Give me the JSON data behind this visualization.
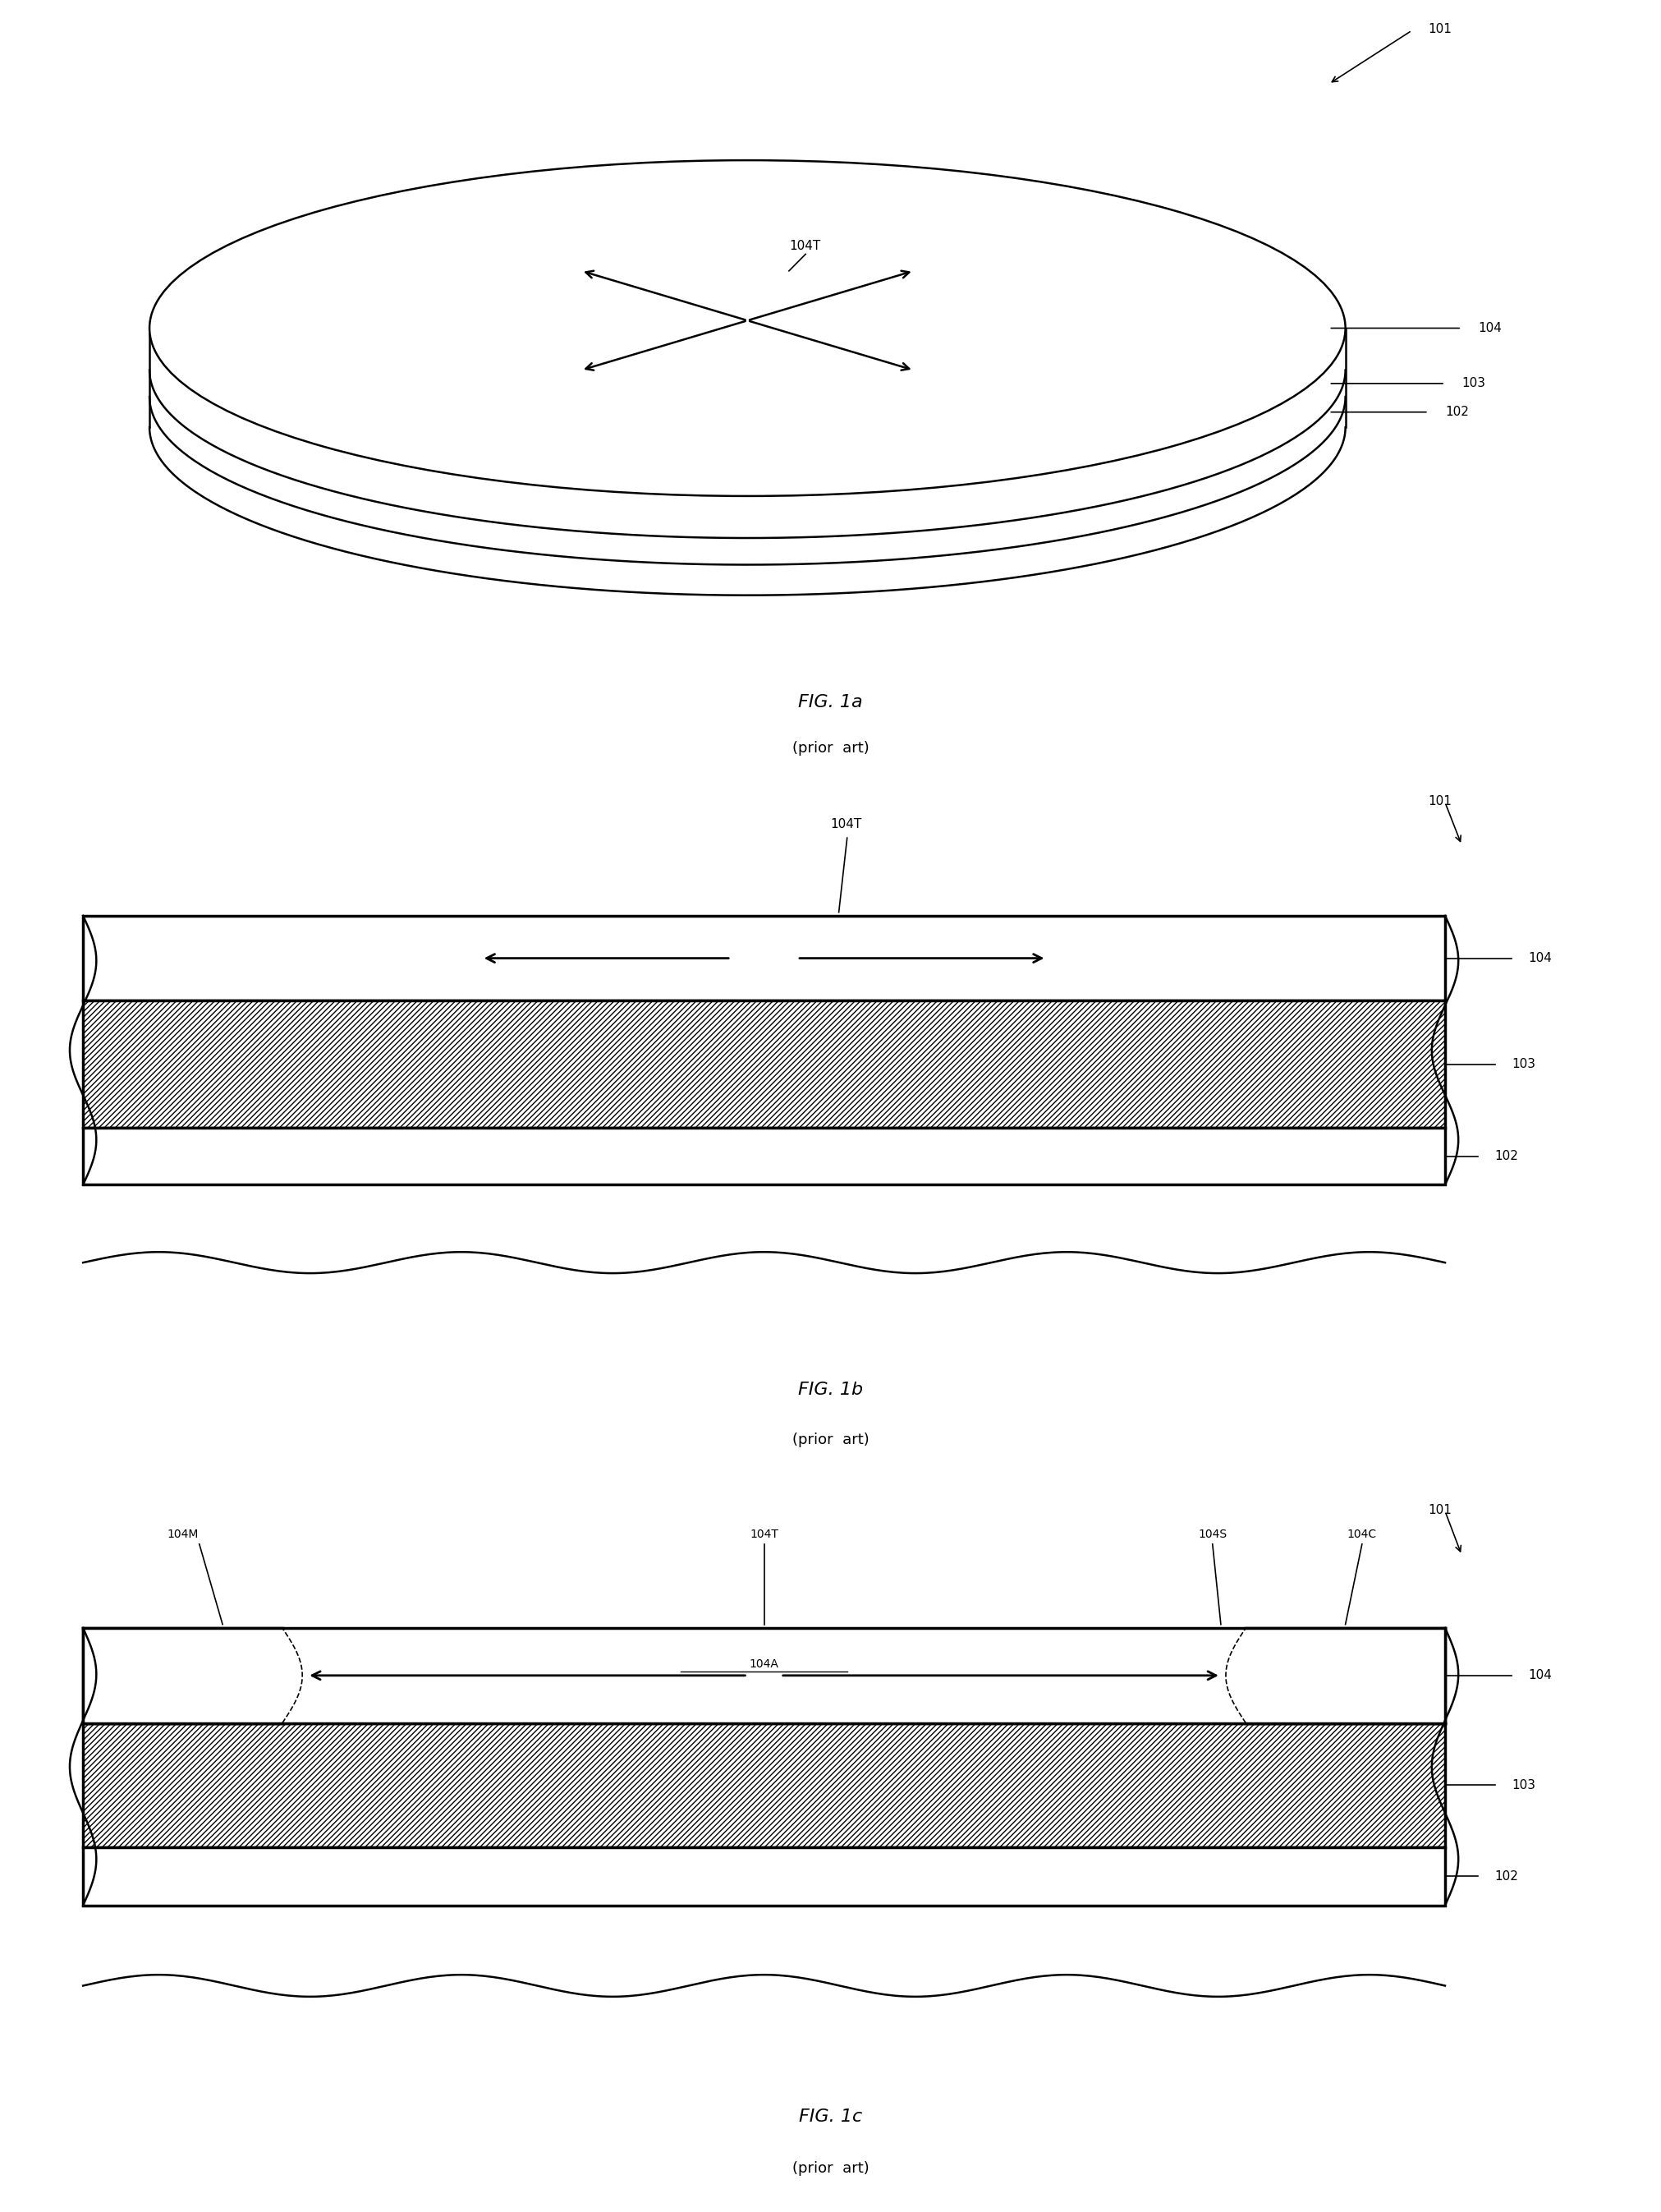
{
  "bg_color": "#ffffff",
  "fig_width": 20.23,
  "fig_height": 26.93,
  "fig1a": {
    "label": "FIG. 1a",
    "sublabel": "(prior  art)",
    "ref101_text": "101",
    "ref104_text": "104",
    "ref103_text": "103",
    "ref102_text": "102",
    "ref104T_text": "104T"
  },
  "fig1b": {
    "label": "FIG. 1b",
    "sublabel": "(prior  art)",
    "ref101_text": "101",
    "ref104_text": "104",
    "ref103_text": "103",
    "ref102_text": "102",
    "ref104T_text": "104T"
  },
  "fig1c": {
    "label": "FIG. 1c",
    "sublabel": "(prior  art)",
    "ref101_text": "101",
    "ref104_text": "104",
    "ref103_text": "103",
    "ref102_text": "102",
    "ref104T_text": "104T",
    "ref104M_text": "104M",
    "ref104S_text": "104S",
    "ref104C_text": "104C",
    "ref104A_text": "104A"
  }
}
